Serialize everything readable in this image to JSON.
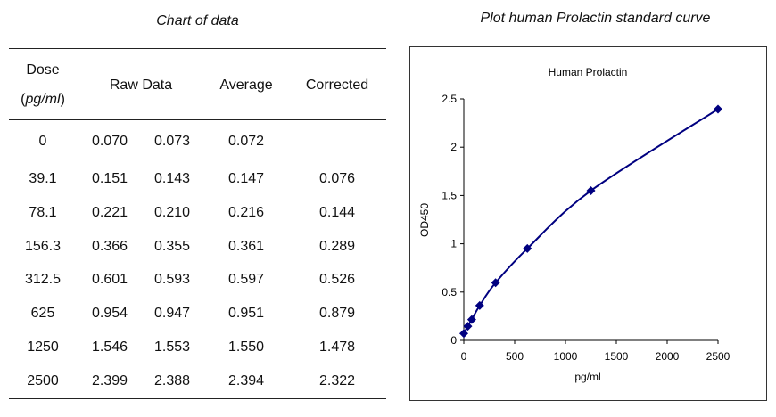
{
  "table": {
    "title": "Chart of data",
    "headers": {
      "dose": "Dose",
      "dose_unit": "pg/ml",
      "raw": "Raw Data",
      "average": "Average",
      "corrected": "Corrected"
    },
    "rows": [
      {
        "dose": "0",
        "raw1": "0.070",
        "raw2": "0.073",
        "average": "0.072",
        "corrected": ""
      },
      {
        "dose": "39.1",
        "raw1": "0.151",
        "raw2": "0.143",
        "average": "0.147",
        "corrected": "0.076"
      },
      {
        "dose": "78.1",
        "raw1": "0.221",
        "raw2": "0.210",
        "average": "0.216",
        "corrected": "0.144"
      },
      {
        "dose": "156.3",
        "raw1": "0.366",
        "raw2": "0.355",
        "average": "0.361",
        "corrected": "0.289"
      },
      {
        "dose": "312.5",
        "raw1": "0.601",
        "raw2": "0.593",
        "average": "0.597",
        "corrected": "0.526"
      },
      {
        "dose": "625",
        "raw1": "0.954",
        "raw2": "0.947",
        "average": "0.951",
        "corrected": "0.879"
      },
      {
        "dose": "1250",
        "raw1": "1.546",
        "raw2": "1.553",
        "average": "1.550",
        "corrected": "1.478"
      },
      {
        "dose": "2500",
        "raw1": "2.399",
        "raw2": "2.388",
        "average": "2.394",
        "corrected": "2.322"
      }
    ]
  },
  "chart_data": {
    "type": "scatter",
    "heading": "Plot human Prolactin standard curve",
    "title": "Human Prolactin",
    "xlabel": "pg/ml",
    "ylabel": "OD450",
    "xlim": [
      0,
      2500
    ],
    "ylim": [
      0,
      2.5
    ],
    "xticks": [
      "0",
      "500",
      "1000",
      "1500",
      "2000",
      "2500"
    ],
    "yticks": [
      "0",
      "0.5",
      "1",
      "1.5",
      "2",
      "2.5"
    ],
    "grid": false,
    "marker": "diamond",
    "line": "smooth",
    "color": "#000080",
    "x": [
      0,
      39.1,
      78.1,
      156.3,
      312.5,
      625,
      1250,
      2500
    ],
    "y": [
      0.072,
      0.147,
      0.216,
      0.361,
      0.597,
      0.951,
      1.55,
      2.394
    ]
  }
}
